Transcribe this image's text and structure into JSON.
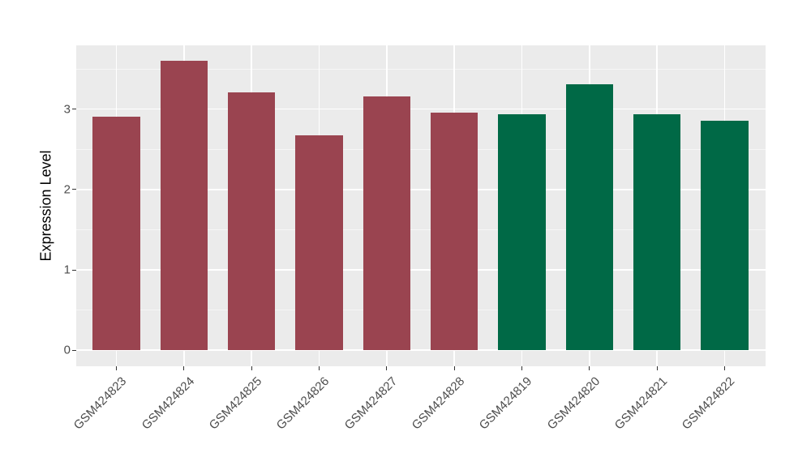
{
  "figure": {
    "background": "#FFFFFF",
    "panel_background": "#EBEBEB",
    "grid_major_color": "#FFFFFF",
    "grid_minor_color": "#F5F5F5",
    "tick_mark_color": "#333333",
    "axis_text_color": "#4D4D4D",
    "axis_title_color": "#000000"
  },
  "chart_data": {
    "type": "bar",
    "title": "",
    "xlabel": "",
    "ylabel": "Expression Level",
    "categories": [
      "GSM424823",
      "GSM424824",
      "GSM424825",
      "GSM424826",
      "GSM424827",
      "GSM424828",
      "GSM424819",
      "GSM424820",
      "GSM424821",
      "GSM424822"
    ],
    "values": [
      2.9,
      3.6,
      3.2,
      2.67,
      3.15,
      2.95,
      2.93,
      3.3,
      2.93,
      2.85
    ],
    "bar_colors": [
      "#9A4450",
      "#9A4450",
      "#9A4450",
      "#9A4450",
      "#9A4450",
      "#9A4450",
      "#006946",
      "#006946",
      "#006946",
      "#006946"
    ],
    "color_legend": {
      "maroon_group": {
        "color": "#9A4450",
        "samples": [
          "GSM424823",
          "GSM424824",
          "GSM424825",
          "GSM424826",
          "GSM424827",
          "GSM424828"
        ]
      },
      "green_group": {
        "color": "#006946",
        "samples": [
          "GSM424819",
          "GSM424820",
          "GSM424821",
          "GSM424822"
        ]
      }
    },
    "ylim": [
      0,
      3.79
    ],
    "yticks": [
      0,
      1,
      2,
      3
    ],
    "yminor": [
      0.5,
      1.5,
      2.5,
      3.5
    ],
    "grid": true,
    "legend_position": "none",
    "bar_width_fraction": 0.7,
    "x_label_angle_deg": 45
  }
}
